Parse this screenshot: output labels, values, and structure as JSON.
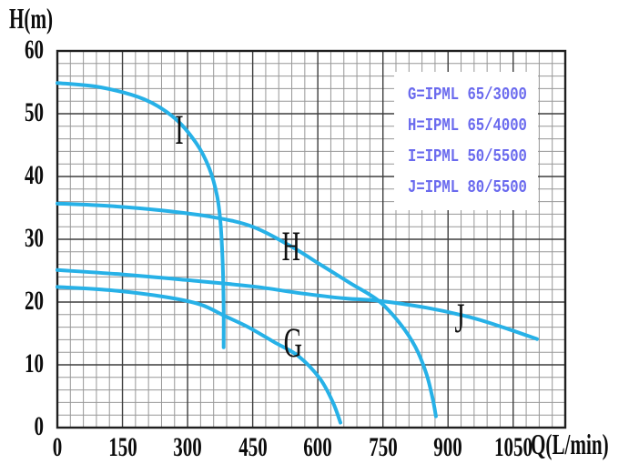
{
  "axes": {
    "x": {
      "label": "Q(L/min)",
      "ticks": [
        0,
        150,
        300,
        450,
        600,
        750,
        900,
        1050
      ],
      "min": 0,
      "max": 1170,
      "minor_step": 30,
      "major_step": 150
    },
    "y": {
      "label": "H(m)",
      "ticks": [
        0,
        10,
        20,
        30,
        40,
        50,
        60
      ],
      "min": 0,
      "max": 60,
      "minor_step": 2,
      "major_step": 10
    }
  },
  "legend": {
    "items": [
      {
        "key": "G",
        "label": "G=IPML 65/3000"
      },
      {
        "key": "H",
        "label": "H=IPML 65/4000"
      },
      {
        "key": "I",
        "label": "I=IPML 50/5500"
      },
      {
        "key": "J",
        "label": "J=IPML 80/5500"
      }
    ]
  },
  "curve_labels": [
    {
      "text": "I",
      "q": 281,
      "h": 47.4
    },
    {
      "text": "H",
      "q": 535,
      "h": 28.8
    },
    {
      "text": "G",
      "q": 539,
      "h": 13.5
    },
    {
      "text": "J",
      "q": 927,
      "h": 17.4
    }
  ],
  "colors": {
    "curve": "#27b1e7",
    "grid_minor": "#979797",
    "grid_major": "#3d3d3d",
    "border": "#1f1f1f",
    "legend_text": "#6a6aee",
    "axis_text": "#0c0c0c"
  },
  "chart_data": {
    "type": "line",
    "title": "",
    "xlabel": "Q(L/min)",
    "ylabel": "H(m)",
    "xlim": [
      0,
      1170
    ],
    "ylim": [
      0,
      60
    ],
    "grid": "on",
    "legend_position": "top-right-inside",
    "series": [
      {
        "name": "G",
        "model": "IPML 65/3000",
        "points": [
          [
            0,
            22.4
          ],
          [
            120,
            21.9
          ],
          [
            250,
            20.8
          ],
          [
            330,
            19.6
          ],
          [
            385,
            17.8
          ],
          [
            440,
            16.0
          ],
          [
            500,
            13.6
          ],
          [
            555,
            11.4
          ],
          [
            605,
            7.8
          ],
          [
            635,
            4.0
          ],
          [
            652,
            0.8
          ]
        ]
      },
      {
        "name": "H",
        "model": "IPML 65/4000",
        "points": [
          [
            0,
            35.7
          ],
          [
            120,
            35.3
          ],
          [
            240,
            34.6
          ],
          [
            360,
            33.5
          ],
          [
            450,
            32.0
          ],
          [
            535,
            29.0
          ],
          [
            610,
            25.8
          ],
          [
            675,
            23.0
          ],
          [
            740,
            20.2
          ],
          [
            790,
            16.5
          ],
          [
            825,
            12.8
          ],
          [
            850,
            8.6
          ],
          [
            865,
            4.5
          ],
          [
            872,
            1.8
          ]
        ]
      },
      {
        "name": "I",
        "model": "IPML 50/5500",
        "points": [
          [
            0,
            54.9
          ],
          [
            100,
            54.2
          ],
          [
            200,
            52.3
          ],
          [
            270,
            49.3
          ],
          [
            320,
            45.3
          ],
          [
            350,
            41.3
          ],
          [
            368,
            36.9
          ],
          [
            376,
            32.5
          ],
          [
            381,
            26.0
          ],
          [
            383,
            19.0
          ],
          [
            383,
            12.8
          ]
        ]
      },
      {
        "name": "J",
        "model": "IPML 80/5500",
        "points": [
          [
            0,
            25.1
          ],
          [
            150,
            24.4
          ],
          [
            300,
            23.5
          ],
          [
            450,
            22.5
          ],
          [
            560,
            21.4
          ],
          [
            660,
            20.6
          ],
          [
            740,
            20.2
          ],
          [
            850,
            19.1
          ],
          [
            950,
            17.6
          ],
          [
            1030,
            15.9
          ],
          [
            1105,
            14.1
          ]
        ]
      }
    ]
  }
}
